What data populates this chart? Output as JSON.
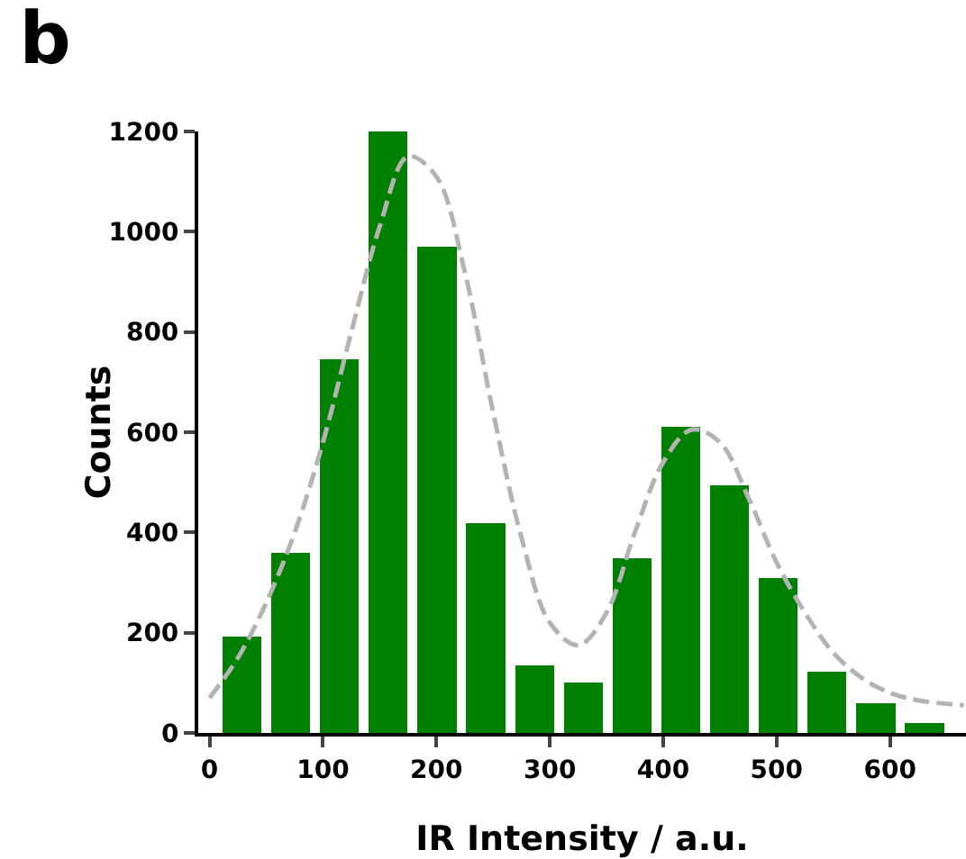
{
  "chart_data": {
    "type": "histogram",
    "title": "b",
    "xlabel": "IR Intensity / a.u.",
    "ylabel": "Counts",
    "bins": [
      7,
      50,
      93,
      136,
      179,
      222,
      265,
      308,
      351,
      394,
      437,
      480,
      523,
      566,
      609,
      652
    ],
    "series": [
      {
        "color": "#008000",
        "values": [
          193,
          360,
          746,
          1200,
          970,
          418,
          135,
          101,
          348,
          610,
          494,
          309,
          123,
          60,
          20
        ]
      },
      {
        "type": "line",
        "color": "#b3b3b3",
        "line_style": "dashed",
        "x": [
          0,
          25,
          50,
          75,
          100,
          125,
          150,
          175,
          200,
          225,
          250,
          275,
          300,
          325,
          350,
          375,
          400,
          425,
          450,
          475,
          500,
          525,
          550,
          575,
          600,
          625,
          665
        ],
        "values": [
          70,
          150,
          260,
          400,
          580,
          800,
          1010,
          1150,
          1110,
          920,
          640,
          390,
          220,
          175,
          240,
          400,
          540,
          605,
          580,
          470,
          340,
          240,
          160,
          110,
          80,
          65,
          55
        ]
      }
    ],
    "xlim": [
      -10,
      667
    ],
    "ylim": [
      0,
      1200
    ],
    "xticks": [
      0,
      100,
      200,
      300,
      400,
      500,
      600
    ],
    "yticks": [
      0,
      200,
      400,
      600,
      800,
      1000,
      1200
    ],
    "grid": false
  }
}
